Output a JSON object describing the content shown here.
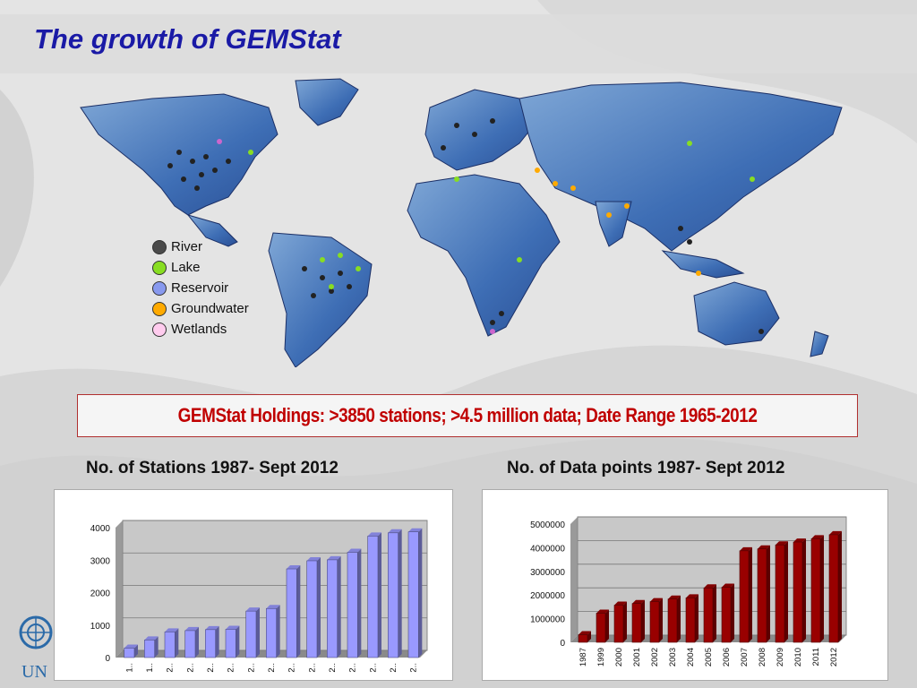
{
  "slide": {
    "title": "The growth of GEMStat",
    "holdings": "GEMStat Holdings: >3850 stations; >4.5 million data; Date Range 1965-2012",
    "logo_text": "UN"
  },
  "legend": [
    {
      "label": "River",
      "color": "#4a4a4a"
    },
    {
      "label": "Lake",
      "color": "#88dd22"
    },
    {
      "label": "Reservoir",
      "color": "#8899ee"
    },
    {
      "label": "Groundwater",
      "color": "#ffaa00"
    },
    {
      "label": "Wetlands",
      "color": "#ffccee"
    }
  ],
  "chart_data": [
    {
      "type": "bar",
      "title": "No. of Stations 1987- Sept 2012",
      "categories": [
        "1..",
        "1..",
        "2..",
        "2..",
        "2..",
        "2..",
        "2..",
        "2..",
        "2..",
        "2..",
        "2..",
        "2..",
        "2..",
        "2..",
        "2.."
      ],
      "values": [
        290,
        540,
        790,
        830,
        860,
        870,
        1430,
        1510,
        2730,
        2980,
        3010,
        3240,
        3740,
        3840,
        3870
      ],
      "ylim": [
        0,
        4000
      ],
      "yticks": [
        0,
        1000,
        2000,
        3000,
        4000
      ],
      "bar_color": "#9999ff",
      "label_rotate": true
    },
    {
      "type": "bar",
      "title": "No. of Data points 1987- Sept 2012",
      "categories": [
        "1987",
        "1999",
        "2000",
        "2001",
        "2002",
        "2003",
        "2004",
        "2005",
        "2006",
        "2007",
        "2008",
        "2009",
        "2010",
        "2011",
        "2012"
      ],
      "values": [
        320000,
        1230000,
        1570000,
        1640000,
        1720000,
        1830000,
        1880000,
        2300000,
        2330000,
        3870000,
        3950000,
        4120000,
        4240000,
        4380000,
        4550000
      ],
      "ylim": [
        0,
        5000000
      ],
      "yticks": [
        0,
        1000000,
        2000000,
        3000000,
        4000000,
        5000000
      ],
      "bar_color": "#990000",
      "label_rotate": true
    }
  ]
}
